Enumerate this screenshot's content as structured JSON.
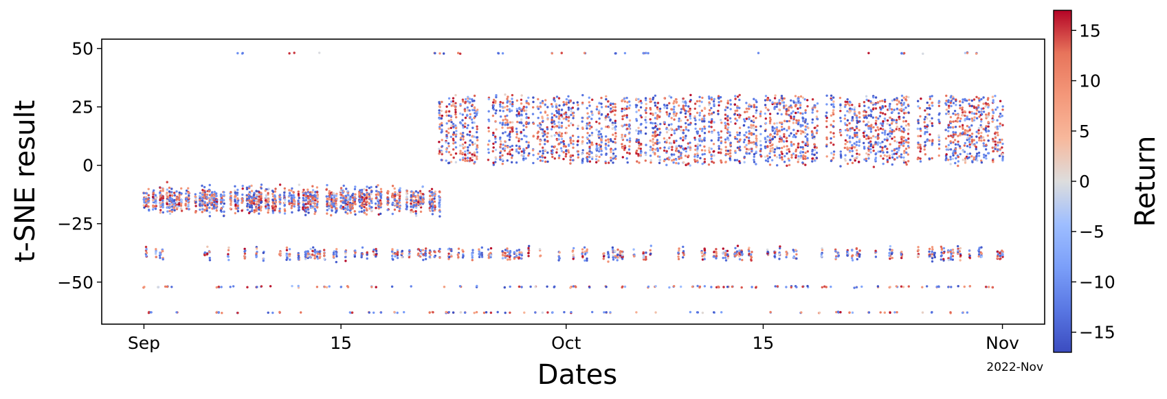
{
  "chart_data": {
    "type": "scatter",
    "title": "",
    "xlabel": "Dates",
    "ylabel": "t-SNE result",
    "x_offset_label": "2022-Nov",
    "x_range": [
      "2022-08-29",
      "2022-11-04"
    ],
    "ylim": [
      -68,
      54
    ],
    "x_ticks": [
      {
        "date": "2022-09-01",
        "label": "Sep"
      },
      {
        "date": "2022-09-15",
        "label": "15"
      },
      {
        "date": "2022-10-01",
        "label": "Oct"
      },
      {
        "date": "2022-10-15",
        "label": "15"
      },
      {
        "date": "2022-11-01",
        "label": "Nov"
      }
    ],
    "y_ticks": [
      50,
      25,
      0,
      -25,
      -50
    ],
    "y_tick_labels": [
      "50",
      "25",
      "0",
      "−25",
      "−50"
    ],
    "grid": false,
    "colorbar": {
      "label": "Return",
      "colormap": "coolwarm",
      "range": [
        -17,
        17
      ],
      "ticks": [
        15,
        10,
        5,
        0,
        -5,
        -10,
        -15
      ],
      "tick_labels": [
        "15",
        "10",
        "5",
        "0",
        "−5",
        "−10",
        "−15"
      ]
    },
    "colors": {
      "low": "#3b4cc0",
      "mid": "#dddddd",
      "high": "#b40426"
    },
    "clusters": [
      {
        "x_start": "2022-09-01",
        "x_end": "2022-09-22",
        "y_center": -15,
        "y_spread": 8
      },
      {
        "x_start": "2022-09-22",
        "x_end": "2022-11-01",
        "y_center": 15,
        "y_spread": 14
      },
      {
        "x_start": "2022-09-01",
        "x_end": "2022-11-01",
        "y_center": -38,
        "y_spread": 4
      },
      {
        "x_start": "2022-09-01",
        "x_end": "2022-11-01",
        "y_center": -52,
        "y_spread": 0.5
      },
      {
        "x_start": "2022-09-01",
        "x_end": "2022-11-01",
        "y_center": -63,
        "y_spread": 0.3
      },
      {
        "x_start": "2022-09-02",
        "x_end": "2022-11-01",
        "y_center": 48,
        "y_spread": 0.3
      }
    ]
  }
}
